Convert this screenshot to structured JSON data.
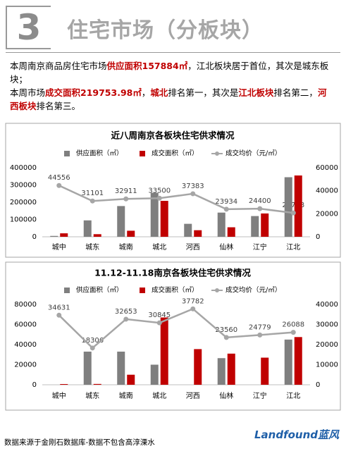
{
  "header": {
    "number": "3",
    "title": "住宅市场（分板块）"
  },
  "paragraphs": [
    [
      {
        "text": "本周南京商品房住宅市场",
        "emphasis": false
      },
      {
        "text": "供应面积157884㎡",
        "emphasis": true
      },
      {
        "text": "，江北板块居于首位，其次是城东板块；",
        "emphasis": false
      }
    ],
    [
      {
        "text": "本周市场",
        "emphasis": false
      },
      {
        "text": "成交面积219753.98㎡",
        "emphasis": true
      },
      {
        "text": "，",
        "emphasis": false
      },
      {
        "text": "城北",
        "emphasis": true
      },
      {
        "text": "排名第一，其次是",
        "emphasis": false
      },
      {
        "text": "江北板块",
        "emphasis": true
      },
      {
        "text": "排名第二，",
        "emphasis": false
      },
      {
        "text": "河西板块",
        "emphasis": true
      },
      {
        "text": "排名第三。",
        "emphasis": false
      }
    ]
  ],
  "chart_data": [
    {
      "type": "bar",
      "title": "近八周南京各板块住宅供求情况",
      "categories": [
        "城中",
        "城东",
        "城南",
        "城北",
        "河西",
        "仙林",
        "江宁",
        "江北"
      ],
      "series": [
        {
          "name": "供应面积（㎡）",
          "color": "#7f7f7f",
          "type": "bar",
          "values": [
            5000,
            95000,
            178000,
            255000,
            75000,
            140000,
            120000,
            345000
          ]
        },
        {
          "name": "成交面积（㎡）",
          "color": "#c00000",
          "type": "bar",
          "values": [
            20000,
            15000,
            35000,
            208000,
            38000,
            55000,
            135000,
            355000
          ]
        },
        {
          "name": "成交均价（元/㎡）",
          "color": "#a6a6a6",
          "type": "line",
          "axis": "y2",
          "values": [
            44556,
            31101,
            32911,
            33500,
            37383,
            23934,
            24400,
            20728
          ]
        }
      ],
      "ylim": [
        0,
        400000
      ],
      "yticks": [
        0,
        100000,
        200000,
        300000,
        400000
      ],
      "y2lim": [
        0,
        60000
      ],
      "y2ticks": [
        0,
        20000,
        40000,
        60000
      ]
    },
    {
      "type": "bar",
      "title": "11.12-11.18南京各板块住宅供求情况",
      "categories": [
        "城中",
        "城东",
        "城南",
        "城北",
        "河西",
        "仙林",
        "江宁",
        "江北"
      ],
      "series": [
        {
          "name": "供应面积（㎡）",
          "color": "#7f7f7f",
          "type": "bar",
          "values": [
            0,
            33000,
            33000,
            20000,
            0,
            26500,
            0,
            45000
          ]
        },
        {
          "name": "成交面积（㎡）",
          "color": "#c00000",
          "type": "bar",
          "values": [
            700,
            800,
            10000,
            67000,
            35500,
            31000,
            27000,
            47500
          ]
        },
        {
          "name": "成交均价（元/㎡）",
          "color": "#a6a6a6",
          "type": "line",
          "axis": "y2",
          "values": [
            34631,
            18306,
            32653,
            30845,
            37782,
            23560,
            24779,
            26088
          ]
        }
      ],
      "ylim": [
        0,
        80000
      ],
      "yticks": [
        0,
        20000,
        40000,
        60000,
        80000
      ],
      "y2lim": [
        0,
        40000
      ],
      "y2ticks": [
        0,
        10000,
        20000,
        30000,
        40000
      ]
    }
  ],
  "footer": {
    "source": "数据来源于金刚石数据库-数据不包含高淳溧水",
    "logo": "Landfound蓝风"
  }
}
